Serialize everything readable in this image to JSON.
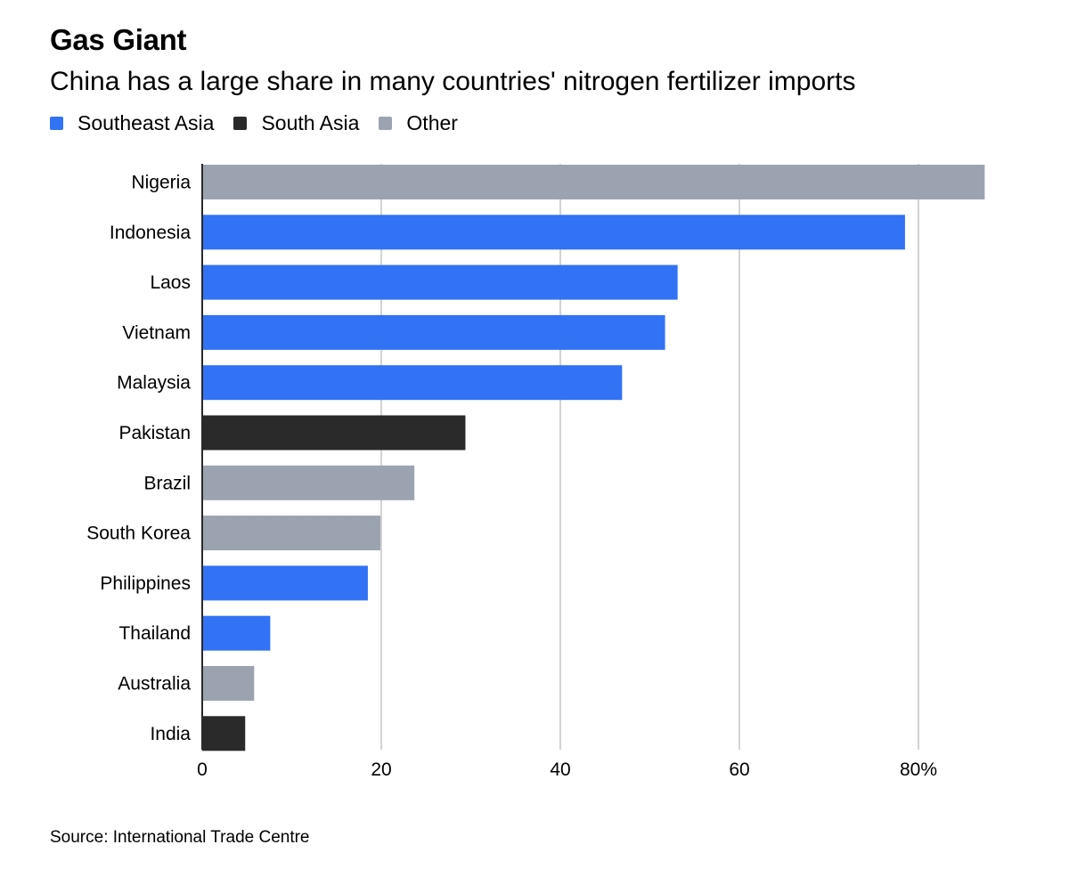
{
  "title": "Gas Giant",
  "subtitle": "China has a large share in many countries' nitrogen fertilizer imports",
  "legend": [
    {
      "label": "Southeast Asia",
      "color": "#3272f5"
    },
    {
      "label": "South Asia",
      "color": "#2a2a2a"
    },
    {
      "label": "Other",
      "color": "#9ca3b0"
    }
  ],
  "chart_data": {
    "type": "bar",
    "orientation": "horizontal",
    "title": "Gas Giant",
    "subtitle": "China has a large share in many countries' nitrogen fertilizer imports",
    "xlabel": "",
    "ylabel": "",
    "xlim": [
      0,
      90
    ],
    "grid": true,
    "legend_position": "top-left",
    "x_ticks": [
      {
        "value": 0,
        "label": "0"
      },
      {
        "value": 20,
        "label": "20"
      },
      {
        "value": 40,
        "label": "40"
      },
      {
        "value": 60,
        "label": "60"
      },
      {
        "value": 80,
        "label": "80%"
      }
    ],
    "categories": [
      "Nigeria",
      "Indonesia",
      "Laos",
      "Vietnam",
      "Malaysia",
      "Pakistan",
      "Brazil",
      "South Korea",
      "Philippines",
      "Thailand",
      "Australia",
      "India"
    ],
    "values": [
      87.4,
      78.5,
      53.1,
      51.7,
      46.9,
      29.4,
      23.7,
      19.9,
      18.5,
      7.6,
      5.8,
      4.8
    ],
    "groups": [
      "Other",
      "Southeast Asia",
      "Southeast Asia",
      "Southeast Asia",
      "Southeast Asia",
      "South Asia",
      "Other",
      "Other",
      "Southeast Asia",
      "Southeast Asia",
      "Other",
      "South Asia"
    ],
    "colors": {
      "Southeast Asia": "#3272f5",
      "South Asia": "#2a2a2a",
      "Other": "#9ca3b0"
    }
  },
  "source": "Source: International Trade Centre"
}
